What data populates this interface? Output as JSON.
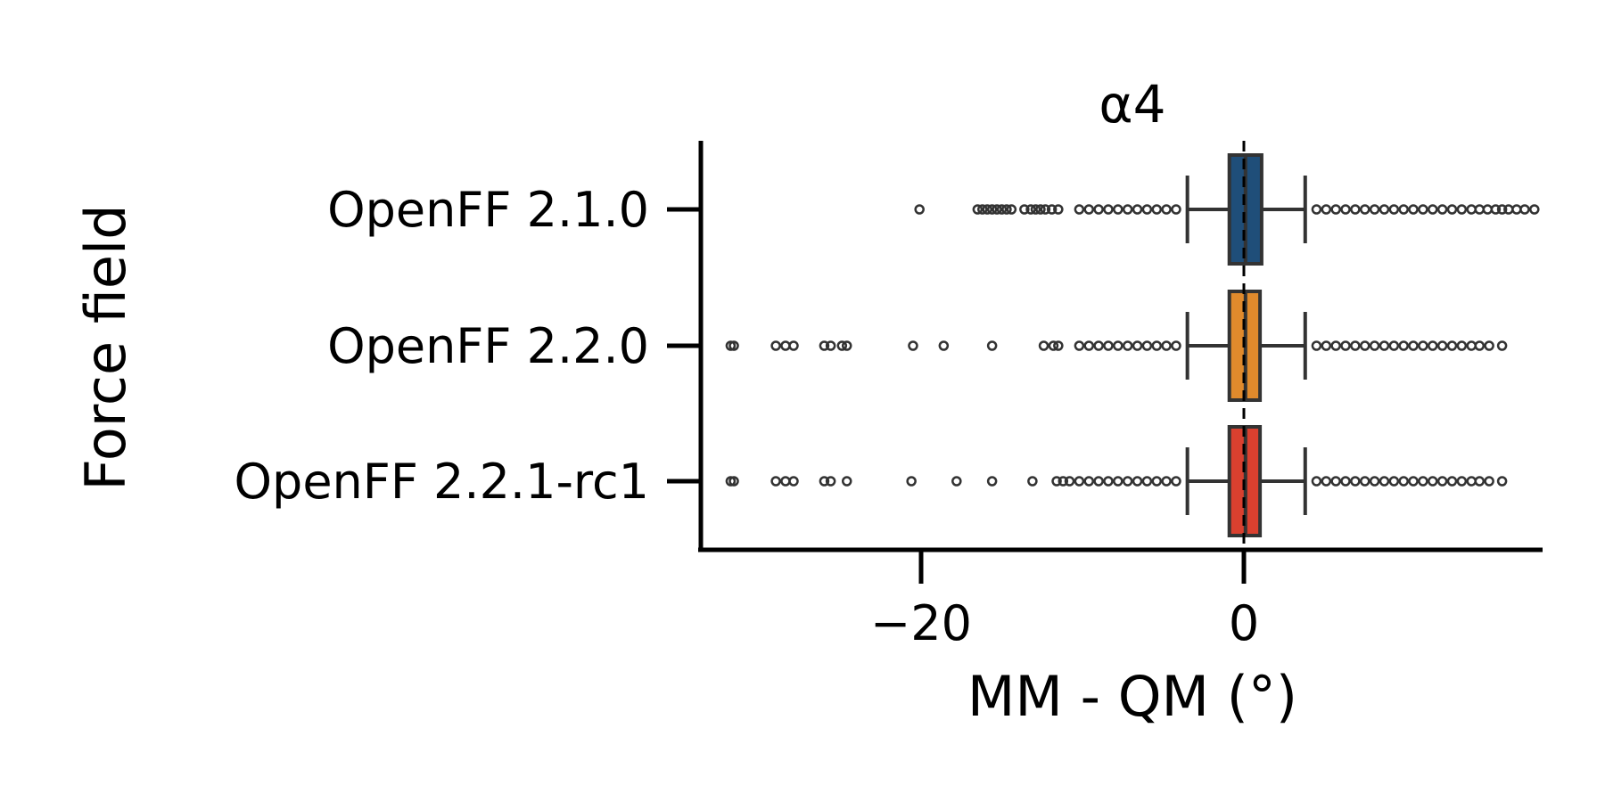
{
  "chart_data": {
    "type": "box",
    "orientation": "horizontal",
    "title": "α4",
    "xlabel": "MM - QM (°)",
    "ylabel": "Force field",
    "xlim": [
      -34,
      18.5
    ],
    "xticks": [
      -20,
      0
    ],
    "xtick_labels": [
      "−20",
      "0"
    ],
    "reference_line": {
      "x": 0,
      "style": "dashed"
    },
    "grid": false,
    "legend": "none",
    "categories": [
      "OpenFF 2.1.0",
      "OpenFF 2.2.0",
      "OpenFF 2.2.1-rc1"
    ],
    "series": [
      {
        "category": "OpenFF 2.1.0",
        "color": "#1f4e79",
        "whisker_low": -3.5,
        "q1": -0.9,
        "median": 0.1,
        "q3": 1.1,
        "whisker_high": 3.8,
        "outliers": [
          -20.1,
          -16.5,
          -16.2,
          -15.9,
          -15.6,
          -15.3,
          -15.0,
          -14.7,
          -14.4,
          -13.6,
          -13.2,
          -12.9,
          -12.6,
          -12.3,
          -11.9,
          -11.5,
          -10.2,
          -9.6,
          -9.0,
          -8.4,
          -7.8,
          -7.2,
          -6.6,
          -6.0,
          -5.4,
          -4.8,
          -4.2,
          4.5,
          5.1,
          5.7,
          6.3,
          6.9,
          7.5,
          8.1,
          8.7,
          9.3,
          9.9,
          10.5,
          11.1,
          11.7,
          12.3,
          12.9,
          13.5,
          14.1,
          14.6,
          15.1,
          15.6,
          16.0,
          16.4,
          16.9,
          17.4,
          18.0
        ]
      },
      {
        "category": "OpenFF 2.2.0",
        "color": "#e08a2c",
        "whisker_low": -3.5,
        "q1": -0.9,
        "median": 0.1,
        "q3": 1.0,
        "whisker_high": 3.8,
        "outliers": [
          -31.8,
          -31.6,
          -29.0,
          -28.4,
          -27.9,
          -26.0,
          -25.6,
          -24.9,
          -24.6,
          -20.5,
          -18.6,
          -15.6,
          -12.4,
          -11.8,
          -11.5,
          -10.2,
          -9.6,
          -9.0,
          -8.4,
          -7.8,
          -7.2,
          -6.6,
          -6.0,
          -5.4,
          -4.8,
          -4.2,
          4.5,
          5.1,
          5.7,
          6.3,
          6.9,
          7.5,
          8.1,
          8.7,
          9.3,
          9.9,
          10.5,
          11.1,
          11.7,
          12.3,
          12.9,
          13.5,
          14.1,
          14.6,
          15.2,
          16.0
        ]
      },
      {
        "category": "OpenFF 2.2.1-rc1",
        "color": "#d9402f",
        "whisker_low": -3.5,
        "q1": -0.9,
        "median": 0.1,
        "q3": 1.0,
        "whisker_high": 3.8,
        "outliers": [
          -31.8,
          -31.6,
          -29.0,
          -28.4,
          -27.9,
          -26.0,
          -25.6,
          -24.6,
          -20.6,
          -17.8,
          -15.6,
          -13.1,
          -11.6,
          -11.2,
          -10.8,
          -10.2,
          -9.6,
          -9.0,
          -8.4,
          -7.8,
          -7.2,
          -6.6,
          -6.0,
          -5.4,
          -4.8,
          -4.2,
          4.5,
          5.1,
          5.7,
          6.3,
          6.9,
          7.5,
          8.1,
          8.7,
          9.3,
          9.9,
          10.5,
          11.1,
          11.7,
          12.3,
          12.9,
          13.5,
          14.1,
          14.6,
          15.2,
          16.0
        ]
      }
    ]
  }
}
